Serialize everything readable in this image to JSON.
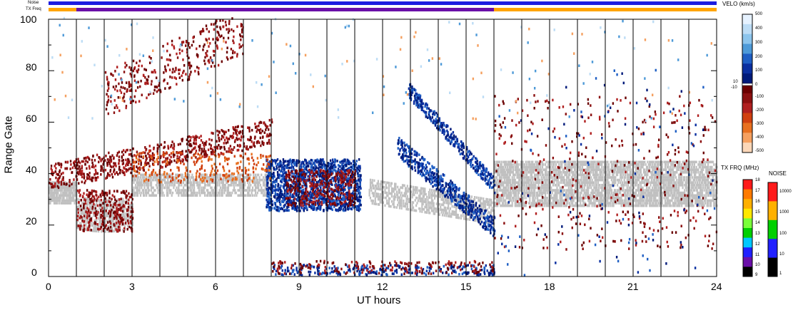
{
  "header": {
    "noise_label": "Noise",
    "txfreq_label": "TX Freq"
  },
  "chart_data": {
    "type": "heatmap",
    "xlabel": "UT hours",
    "ylabel": "Range Gate",
    "xlim": [
      0,
      24
    ],
    "ylim": [
      0,
      100
    ],
    "xticks": [
      "0",
      "3",
      "6",
      "9",
      "12",
      "15",
      "18",
      "21",
      "24"
    ],
    "yticks": [
      "0",
      "20",
      "40",
      "60",
      "80",
      "100"
    ],
    "hour_gridlines": [
      1,
      2,
      3,
      4,
      5,
      6,
      7,
      8,
      9,
      10,
      11,
      12,
      13,
      14,
      15,
      16,
      17,
      18,
      19,
      20,
      21,
      22,
      23
    ],
    "noise_bar": [
      {
        "start": 0,
        "end": 24,
        "color": "#1c1ce0"
      }
    ],
    "txfreq_bar": [
      {
        "start": 0,
        "end": 1,
        "color": "#ffa500"
      },
      {
        "start": 1,
        "end": 16,
        "color": "#6a0fa8"
      },
      {
        "start": 16,
        "end": 24,
        "color": "#ffa500"
      }
    ],
    "ground_scatter_color": "#c0c0c0",
    "velocity_scale": {
      "title": "VELO (km/s)",
      "ticks": [
        "500",
        "400",
        "300",
        "200",
        "100",
        "0",
        "-100",
        "-200",
        "-300",
        "-400",
        "-500"
      ],
      "small_ticks": [
        "10",
        "-10"
      ],
      "colors_top_to_bottom": [
        "#e6f2ff",
        "#bcdcf5",
        "#8cc4ec",
        "#4e9ad8",
        "#1f5fc4",
        "#0a2fa0",
        "#001a7a",
        "#6b0000",
        "#8b1010",
        "#b02020",
        "#d04010",
        "#e87020",
        "#f5a060",
        "#fbd7b8"
      ]
    },
    "txfreq_scale": {
      "title": "TX FRQ (MHz)",
      "labels": [
        "18",
        "17",
        "16",
        "15",
        "14",
        "13",
        "12",
        "11",
        "10",
        "9"
      ],
      "colors_top_to_bottom": [
        "#ff1a1a",
        "#ff7a00",
        "#ffb000",
        "#ffe800",
        "#7aff3a",
        "#00d000",
        "#00c8ff",
        "#2020ff",
        "#6a0fa8",
        "#000000"
      ]
    },
    "noise_scale": {
      "title": "NOISE",
      "labels": [
        "10000",
        "1000",
        "100",
        "10",
        "1"
      ],
      "colors_top_to_bottom": [
        "#ff1a1a",
        "#ffb000",
        "#00d000",
        "#2020ff",
        "#000000"
      ]
    },
    "series": [
      {
        "name": "ground scatter (grey)",
        "regions": "gates 25-45 most of day; 15-35 at 1-3 UT"
      },
      {
        "name": "positive velocity (dark blue)",
        "regions": "8-11 UT gates 25-45; 13-16 UT descending 75-15"
      },
      {
        "name": "negative velocity (dark red)",
        "regions": "0-8 UT gates 15-100; scattered 16-24 UT"
      }
    ]
  }
}
